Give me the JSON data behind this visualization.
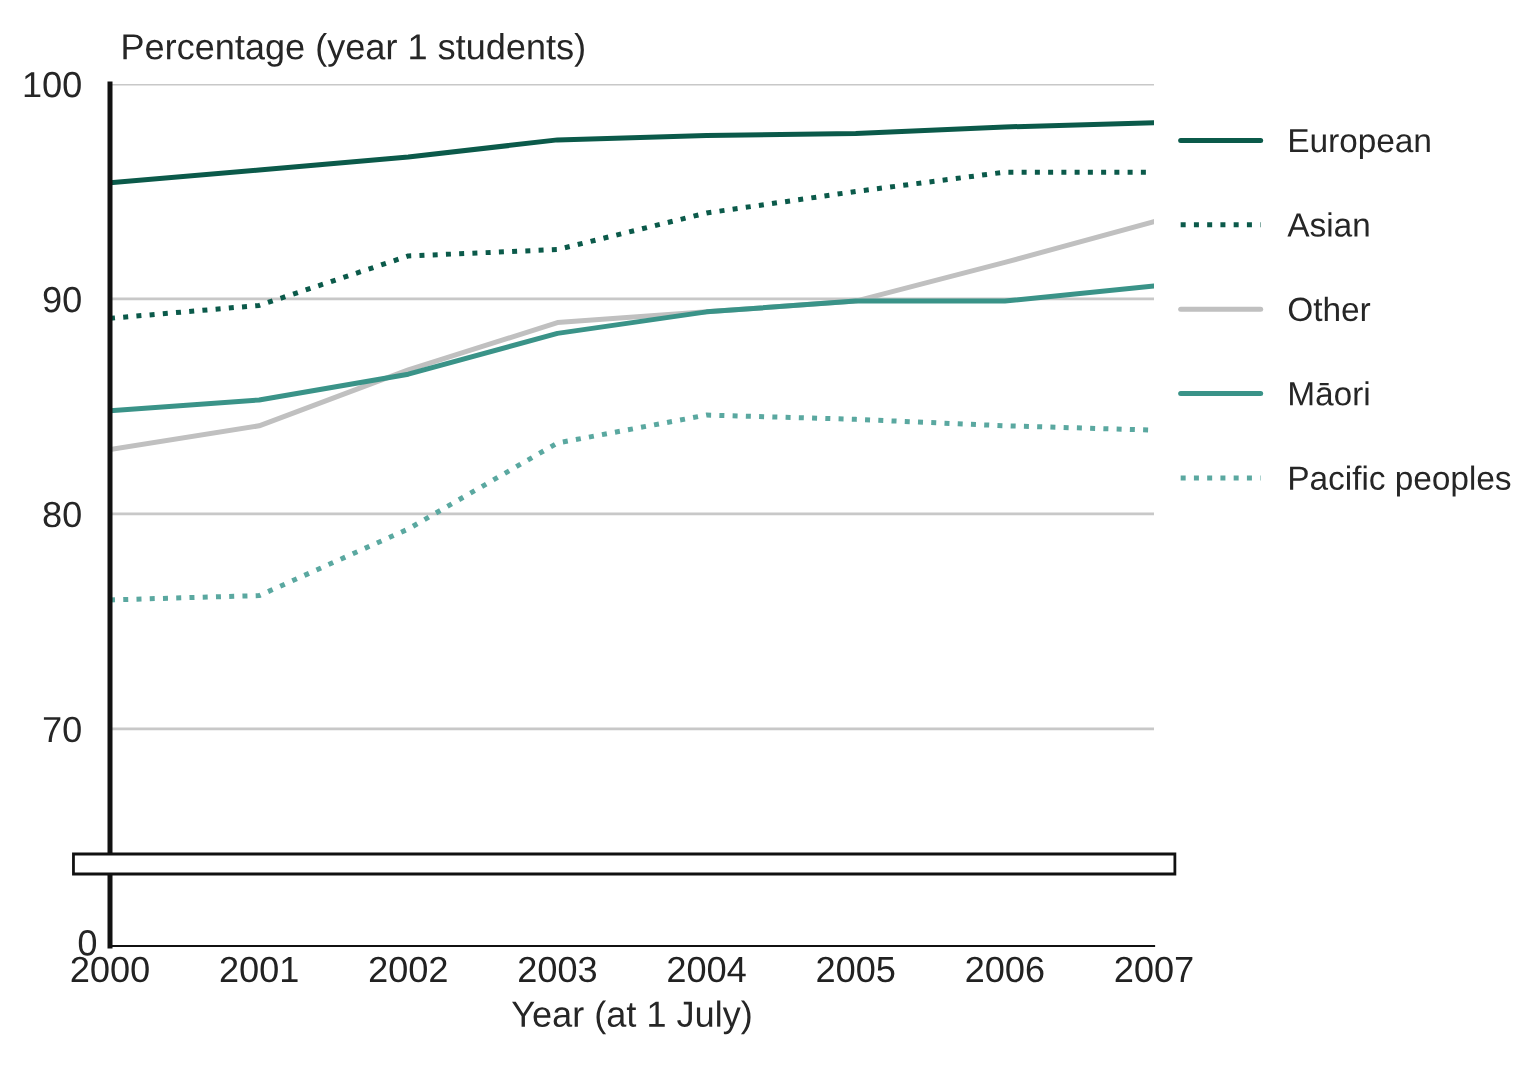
{
  "chart_data": {
    "type": "line",
    "ylabel": "Percentage (year 1 students)",
    "xlabel": "Year (at 1 July)",
    "annotations": [
      "0"
    ],
    "x": [
      2000,
      2001,
      2002,
      2003,
      2004,
      2005,
      2006,
      2007
    ],
    "xlim": [
      2000,
      2007
    ],
    "xticks": [
      2000,
      2001,
      2002,
      2003,
      2004,
      2005,
      2006,
      2007
    ],
    "ylim": [
      59.9,
      100
    ],
    "yticks": [
      70,
      80,
      90,
      100
    ],
    "grid": "y",
    "legend": "right",
    "series": [
      {
        "name": "European",
        "color": "#0b5a4a",
        "line_style": "solid",
        "values": [
          95.4,
          96.0,
          96.6,
          97.4,
          97.6,
          97.7,
          98.0,
          98.2
        ]
      },
      {
        "name": "Asian",
        "color": "#0b5a4a",
        "line_style": "dotted",
        "values": [
          89.1,
          89.7,
          92.0,
          92.3,
          94.0,
          95.0,
          95.9,
          95.9
        ]
      },
      {
        "name": "Other",
        "color": "#c0c0c0",
        "line_style": "solid",
        "values": [
          83.0,
          84.1,
          86.7,
          88.9,
          89.4,
          89.9,
          91.7,
          93.6
        ]
      },
      {
        "name": "Māori",
        "color": "#3a9388",
        "line_style": "solid",
        "values": [
          84.8,
          85.3,
          86.5,
          88.4,
          89.4,
          89.9,
          89.9,
          90.6
        ]
      },
      {
        "name": "Pacific peoples",
        "color": "#5aa8a0",
        "line_style": "dotted",
        "values": [
          76.0,
          76.2,
          79.3,
          83.3,
          84.6,
          84.4,
          84.1,
          83.9
        ]
      }
    ]
  }
}
